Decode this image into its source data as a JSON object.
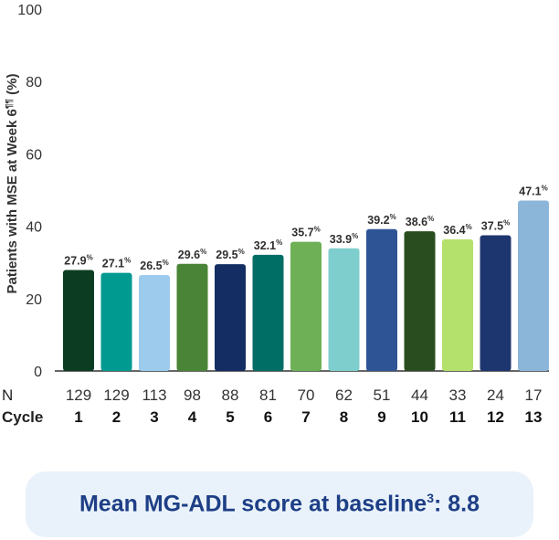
{
  "chart_data": {
    "type": "bar",
    "ylabel_parts": {
      "main": "Patients with MSE at Week 6",
      "sup": "¶¶",
      "tail": " (%)"
    },
    "ylim": [
      0,
      100
    ],
    "yticks": [
      "0",
      "20",
      "40",
      "60",
      "80",
      "100"
    ],
    "grid": false,
    "value_suffix": "%",
    "categories": [
      "1",
      "2",
      "3",
      "4",
      "5",
      "6",
      "7",
      "8",
      "9",
      "10",
      "11",
      "12",
      "13"
    ],
    "values": [
      27.9,
      27.1,
      26.5,
      29.6,
      29.5,
      32.1,
      35.7,
      33.9,
      39.2,
      38.6,
      36.4,
      37.5,
      47.1
    ],
    "value_labels": [
      "27.9",
      "27.1",
      "26.5",
      "29.6",
      "29.5",
      "32.1",
      "35.7",
      "33.9",
      "39.2",
      "38.6",
      "36.4",
      "37.5",
      "47.1"
    ],
    "n_values": [
      "129",
      "129",
      "113",
      "98",
      "88",
      "81",
      "70",
      "62",
      "51",
      "44",
      "33",
      "24",
      "17"
    ],
    "bar_colors": [
      "#0c3d23",
      "#009a91",
      "#9ccbed",
      "#4a8537",
      "#142e63",
      "#006e64",
      "#6eb056",
      "#7fcece",
      "#2f5496",
      "#2a4d1f",
      "#b4e06c",
      "#1e3670",
      "#8bb6d9"
    ],
    "row_labels": {
      "n": "N",
      "cycle": "Cycle"
    }
  },
  "callout": {
    "main": "Mean MG-ADL score at baseline",
    "sup": "3",
    "tail": ": 8.8"
  }
}
